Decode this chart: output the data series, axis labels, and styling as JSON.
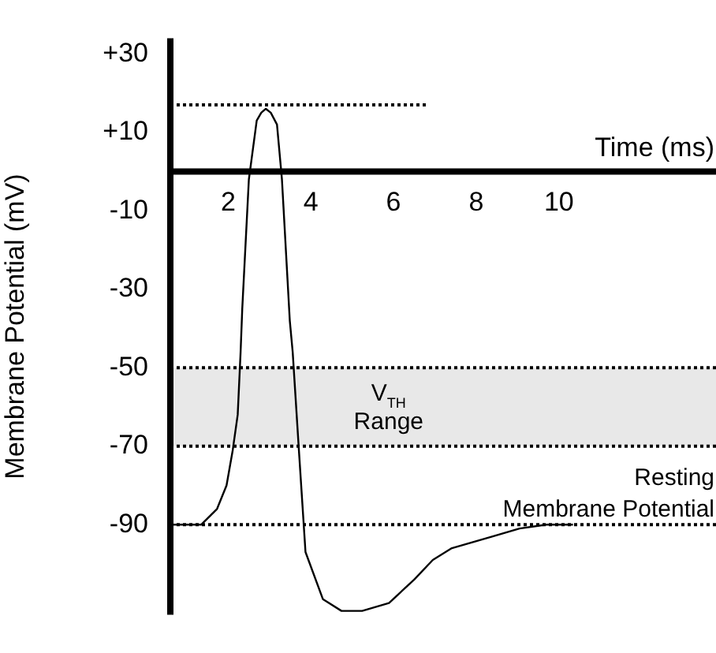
{
  "chart_data": {
    "type": "line",
    "xlabel": "Time (ms)",
    "ylabel": "Membrane Potential (mV)",
    "x": [
      0.67,
      1.35,
      1.73,
      1.96,
      2.11,
      2.23,
      2.3,
      2.34,
      2.5,
      2.69,
      2.8,
      2.91,
      3.03,
      3.18,
      3.3,
      3.49,
      3.56,
      3.71,
      3.87,
      4.29,
      4.74,
      5.24,
      5.89,
      6.5,
      6.95,
      7.41,
      8.4,
      9.05,
      9.7,
      10.34
    ],
    "xlim": [
      0.6,
      13.8
    ],
    "ylim": [
      -113,
      34
    ],
    "xticks": [
      2,
      4,
      6,
      8,
      10
    ],
    "yticks": [
      {
        "value": 30,
        "label": "+30"
      },
      {
        "value": 10,
        "label": "+10"
      },
      -10,
      -30,
      -50,
      -70,
      -90
    ],
    "series": [
      {
        "color": "#000000",
        "values": [
          -90,
          -90,
          -86,
          -80,
          -71,
          -62,
          -46,
          -35,
          -2,
          13,
          15,
          16,
          15,
          12,
          -2,
          -38,
          -46,
          -71,
          -97,
          -109,
          -112,
          -112,
          -110,
          -104,
          -99,
          -96,
          -93,
          -91,
          -90,
          -90
        ]
      },
      {
        "type": "line",
        "x": [
          0.6,
          6.8
        ],
        "values": [
          17,
          17
        ],
        "color": "#000000",
        "line_style": "dotted"
      }
    ],
    "bands": [
      {
        "axis": "y",
        "from": -70,
        "to": -50,
        "label": "V$_{TH}$\nRange",
        "color": "#e8e8e8"
      }
    ],
    "ref_lines": [
      {
        "axis": "y",
        "value": 0,
        "line_style": "solid",
        "color": "#000000"
      },
      {
        "axis": "x",
        "value": 0.6,
        "line_style": "solid",
        "color": "#000000"
      },
      {
        "axis": "y",
        "value": -50,
        "line_style": "dotted",
        "color": "#000000"
      },
      {
        "axis": "y",
        "value": -70,
        "line_style": "dotted",
        "color": "#000000"
      },
      {
        "axis": "y",
        "value": -90,
        "label": "Resting\nMembrane Potential",
        "line_style": "dotted",
        "color": "#000000"
      }
    ],
    "grid": false,
    "legend": false,
    "marker": "none",
    "line_style": "solid"
  }
}
